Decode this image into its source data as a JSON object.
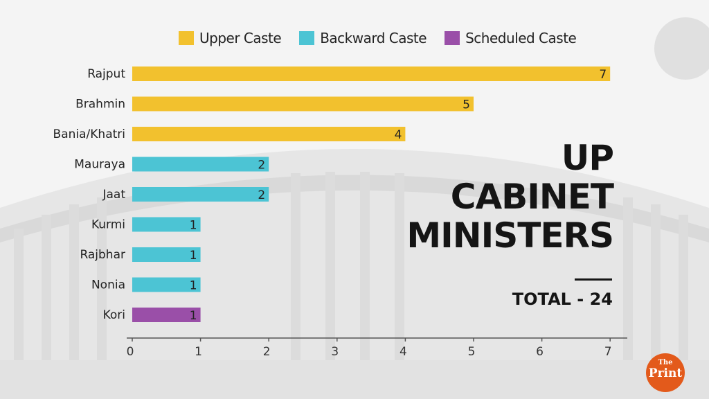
{
  "colors": {
    "upper": "#f2c12e",
    "backward": "#4cc4d4",
    "scheduled": "#9a4fa8",
    "text": "#222222",
    "accent_logo": "#e35a1b"
  },
  "legend": [
    {
      "label": "Upper Caste",
      "color": "#f2c12e"
    },
    {
      "label": "Backward Caste",
      "color": "#4cc4d4"
    },
    {
      "label": "Scheduled Caste",
      "color": "#9a4fa8"
    }
  ],
  "title": {
    "line1": "UP",
    "line2": "CABINET",
    "line3": "MINISTERS"
  },
  "total": "TOTAL - 24",
  "logo": {
    "small": "The",
    "big": "Print"
  },
  "chart_data": {
    "type": "bar",
    "orientation": "horizontal",
    "categories": [
      "Rajput",
      "Brahmin",
      "Bania/Khatri",
      "Mauraya",
      "Jaat",
      "Kurmi",
      "Rajbhar",
      "Nonia",
      "Kori"
    ],
    "values": [
      7,
      5,
      4,
      2,
      2,
      1,
      1,
      1,
      1
    ],
    "groups": [
      "Upper Caste",
      "Upper Caste",
      "Upper Caste",
      "Backward Caste",
      "Backward Caste",
      "Backward Caste",
      "Backward Caste",
      "Backward Caste",
      "Scheduled Caste"
    ],
    "x_ticks": [
      "0",
      "1",
      "2",
      "3",
      "4",
      "5",
      "6",
      "7"
    ],
    "xlim": [
      0,
      7
    ],
    "legend_placement": "top",
    "grid": false
  }
}
